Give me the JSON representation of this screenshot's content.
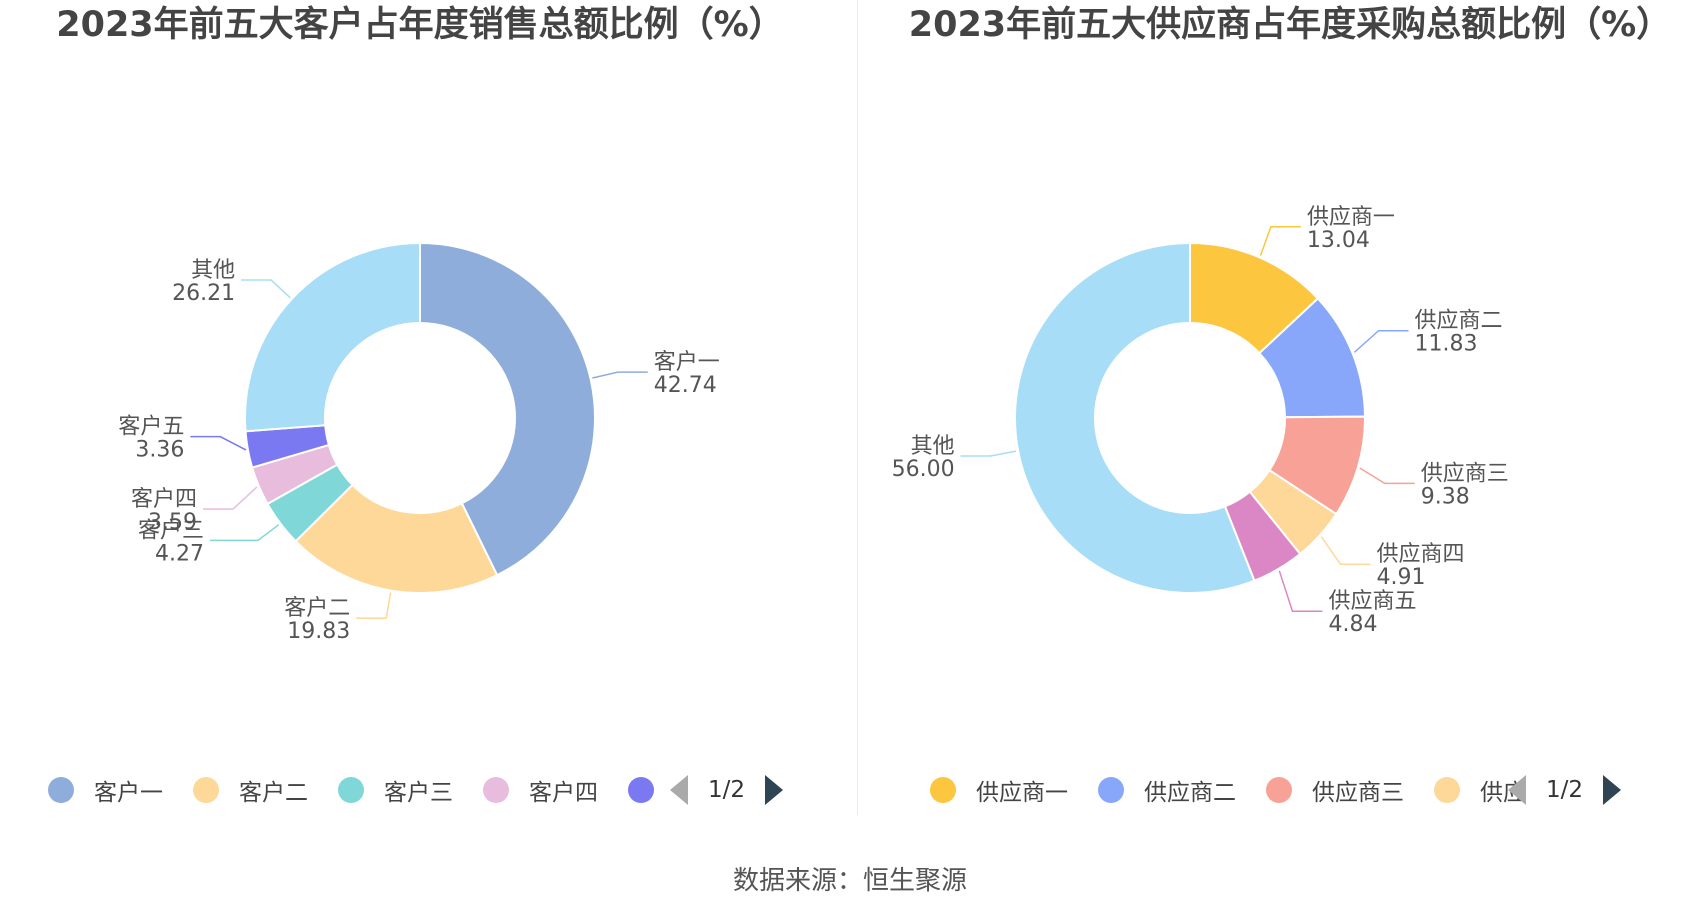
{
  "source_text": "数据来源：恒生聚源",
  "chart_data": [
    {
      "type": "pie",
      "variant": "donut",
      "title": "2023年前五大客户占年度销售总额比例（%）",
      "categories": [
        "客户一",
        "客户二",
        "客户三",
        "客户四",
        "客户五",
        "其他"
      ],
      "values": [
        42.74,
        19.83,
        4.27,
        3.59,
        3.36,
        26.21
      ],
      "value_labels": [
        "42.74",
        "19.83",
        "4.27",
        "3.59",
        "3.36",
        "26.21"
      ],
      "colors": [
        "#8fadda",
        "#fdd898",
        "#7fd7d8",
        "#e8bcdc",
        "#7a79f2",
        "#a8ddf7"
      ],
      "legend": {
        "position": "bottom",
        "visible_items": [
          "客户一",
          "客户二",
          "客户三",
          "客户四",
          ""
        ],
        "page_text": "1/2"
      }
    },
    {
      "type": "pie",
      "variant": "donut",
      "title": "2023年前五大供应商占年度采购总额比例（%）",
      "categories": [
        "供应商一",
        "供应商二",
        "供应商三",
        "供应商四",
        "供应商五",
        "其他"
      ],
      "values": [
        13.04,
        11.83,
        9.38,
        4.91,
        4.84,
        56.0
      ],
      "value_labels": [
        "13.04",
        "11.83",
        "9.38",
        "4.91",
        "4.84",
        "56.00"
      ],
      "colors": [
        "#fcc63f",
        "#88a7fa",
        "#f8a197",
        "#fdd898",
        "#dc87c5",
        "#a8ddf7"
      ],
      "legend": {
        "position": "bottom",
        "visible_items": [
          "供应商一",
          "供应商二",
          "供应商三",
          "供应"
        ],
        "page_text": "1/2"
      }
    }
  ]
}
